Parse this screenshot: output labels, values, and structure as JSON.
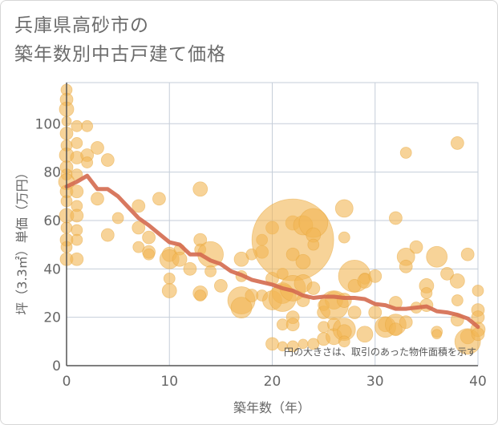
{
  "title_lines": [
    "兵庫県高砂市の",
    "築年数別中古戸建て価格"
  ],
  "colors": {
    "bubble": "#f2b653",
    "bubble_stroke": "#e8a73e",
    "line": "#d46a4f",
    "grid": "#c5ced9",
    "axis": "#555555"
  },
  "chart_data": {
    "type": "scatter",
    "title": "兵庫県高砂市の築年数別中古戸建て価格",
    "xlabel": "築年数（年）",
    "ylabel": "坪（3.3㎡）単価（万円）",
    "xlim": [
      0,
      40
    ],
    "ylim": [
      0,
      117
    ],
    "xticks": [
      0,
      10,
      20,
      30,
      40
    ],
    "yticks": [
      0,
      20,
      40,
      60,
      80,
      100
    ],
    "grid": true,
    "note": "円の大きさは、取引のあった物件面積を示す",
    "bubbles": [
      [
        0,
        114,
        7
      ],
      [
        0,
        110,
        8
      ],
      [
        0,
        106,
        9
      ],
      [
        0,
        101,
        6
      ],
      [
        0,
        96,
        8
      ],
      [
        0,
        91,
        7
      ],
      [
        0,
        87,
        9
      ],
      [
        0,
        82,
        8
      ],
      [
        0,
        79,
        7
      ],
      [
        0,
        76,
        10
      ],
      [
        0,
        72,
        8
      ],
      [
        0,
        68,
        7
      ],
      [
        0,
        62,
        9
      ],
      [
        0,
        57,
        7
      ],
      [
        0,
        52,
        8
      ],
      [
        0,
        49,
        7
      ],
      [
        0,
        44,
        8
      ],
      [
        1,
        99,
        7
      ],
      [
        1,
        92,
        7
      ],
      [
        1,
        86,
        8
      ],
      [
        1,
        79,
        7
      ],
      [
        1,
        72,
        8
      ],
      [
        1,
        66,
        7
      ],
      [
        1,
        62,
        8
      ],
      [
        1,
        56,
        7
      ],
      [
        1,
        52,
        7
      ],
      [
        1,
        44,
        8
      ],
      [
        2,
        99,
        7
      ],
      [
        2,
        87,
        8
      ],
      [
        2,
        84,
        7
      ],
      [
        3,
        90,
        8
      ],
      [
        3,
        69,
        8
      ],
      [
        4,
        85,
        8
      ],
      [
        4,
        54,
        8
      ],
      [
        5,
        61,
        7
      ],
      [
        7,
        66,
        8
      ],
      [
        7,
        57,
        8
      ],
      [
        7,
        49,
        7
      ],
      [
        8,
        53,
        8
      ],
      [
        8,
        47,
        8
      ],
      [
        8,
        46,
        7
      ],
      [
        9,
        69,
        8
      ],
      [
        10,
        46,
        9
      ],
      [
        10,
        44,
        12
      ],
      [
        10,
        36,
        7
      ],
      [
        10,
        31,
        9
      ],
      [
        11,
        48,
        7
      ],
      [
        11,
        44,
        9
      ],
      [
        12,
        40,
        8
      ],
      [
        13,
        73,
        9
      ],
      [
        13,
        52,
        8
      ],
      [
        13,
        48,
        7
      ],
      [
        13,
        30,
        9
      ],
      [
        13,
        29,
        7
      ],
      [
        14,
        46,
        16
      ],
      [
        14,
        39,
        7
      ],
      [
        15,
        33,
        8
      ],
      [
        17,
        44,
        9
      ],
      [
        17,
        37,
        7
      ],
      [
        17,
        27,
        17
      ],
      [
        17,
        24,
        13
      ],
      [
        18,
        46,
        7
      ],
      [
        18,
        29,
        8
      ],
      [
        19,
        52,
        7
      ],
      [
        19,
        47,
        8
      ],
      [
        19,
        29,
        7
      ],
      [
        20,
        57,
        8
      ],
      [
        20,
        36,
        8
      ],
      [
        20,
        27,
        12
      ],
      [
        20,
        9,
        8
      ],
      [
        21,
        38,
        7
      ],
      [
        21,
        30,
        13
      ],
      [
        21,
        28,
        17
      ],
      [
        21,
        17,
        7
      ],
      [
        21,
        8,
        6
      ],
      [
        22,
        59,
        9
      ],
      [
        22,
        52,
        51
      ],
      [
        22,
        46,
        8
      ],
      [
        22,
        32,
        16
      ],
      [
        22,
        20,
        8
      ],
      [
        22,
        17,
        8
      ],
      [
        22,
        8,
        7
      ],
      [
        23,
        58,
        12
      ],
      [
        23,
        43,
        9
      ],
      [
        23,
        34,
        11
      ],
      [
        23,
        27,
        8
      ],
      [
        23,
        9,
        6
      ],
      [
        24,
        59,
        18
      ],
      [
        24,
        54,
        9
      ],
      [
        24,
        50,
        7
      ],
      [
        24,
        32,
        8
      ],
      [
        24,
        9,
        7
      ],
      [
        25,
        25,
        7
      ],
      [
        25,
        22,
        8
      ],
      [
        25,
        16,
        7
      ],
      [
        25,
        11,
        8
      ],
      [
        26,
        27,
        11
      ],
      [
        26,
        25,
        18
      ],
      [
        26,
        17,
        8
      ],
      [
        26,
        12,
        10
      ],
      [
        27,
        65,
        11
      ],
      [
        27,
        53,
        7
      ],
      [
        27,
        27,
        9
      ],
      [
        27,
        15,
        14
      ],
      [
        27,
        14,
        9
      ],
      [
        27,
        10,
        7
      ],
      [
        28,
        22,
        8
      ],
      [
        28,
        37,
        20
      ],
      [
        28,
        33,
        8
      ],
      [
        29,
        36,
        7
      ],
      [
        29,
        35,
        9
      ],
      [
        29,
        13,
        10
      ],
      [
        30,
        37,
        8
      ],
      [
        30,
        22,
        8
      ],
      [
        31,
        17,
        9
      ],
      [
        31,
        16,
        13
      ],
      [
        32,
        61,
        8
      ],
      [
        32,
        26,
        8
      ],
      [
        32,
        17,
        13
      ],
      [
        32,
        15,
        8
      ],
      [
        33,
        88,
        7
      ],
      [
        33,
        45,
        11
      ],
      [
        33,
        41,
        8
      ],
      [
        33,
        18,
        8
      ],
      [
        34,
        24,
        7
      ],
      [
        34,
        49,
        8
      ],
      [
        35,
        33,
        9
      ],
      [
        35,
        30,
        7
      ],
      [
        35,
        25,
        8
      ],
      [
        36,
        45,
        13
      ],
      [
        36,
        14,
        7
      ],
      [
        36,
        13,
        6
      ],
      [
        37,
        38,
        8
      ],
      [
        38,
        92,
        8
      ],
      [
        38,
        35,
        9
      ],
      [
        38,
        27,
        7
      ],
      [
        38,
        19,
        8
      ],
      [
        39,
        46,
        8
      ],
      [
        39,
        12,
        9
      ],
      [
        39,
        10,
        16
      ],
      [
        40,
        31,
        7
      ],
      [
        40,
        23,
        8
      ],
      [
        40,
        20,
        8
      ],
      [
        40,
        15,
        9
      ],
      [
        40,
        13,
        8
      ]
    ],
    "trend_line": {
      "x": [
        0,
        1,
        2,
        3,
        4,
        5,
        6,
        7,
        8,
        9,
        10,
        11,
        12,
        13,
        14,
        15,
        16,
        17,
        18,
        19,
        20,
        21,
        22,
        23,
        24,
        25,
        26,
        27,
        28,
        29,
        30,
        31,
        32,
        33,
        34,
        35,
        36,
        37,
        38,
        39,
        40
      ],
      "y": [
        74,
        76,
        78.5,
        73,
        73,
        70,
        65.5,
        61,
        58,
        54.5,
        51,
        50,
        46,
        46,
        43.5,
        42,
        39,
        37.5,
        35.5,
        34.5,
        33.5,
        32,
        31,
        29,
        28,
        28.5,
        28.5,
        28,
        28,
        27.5,
        25.5,
        25,
        23.5,
        23.5,
        24,
        24.5,
        22.5,
        22,
        21,
        19.5,
        16
      ]
    }
  }
}
